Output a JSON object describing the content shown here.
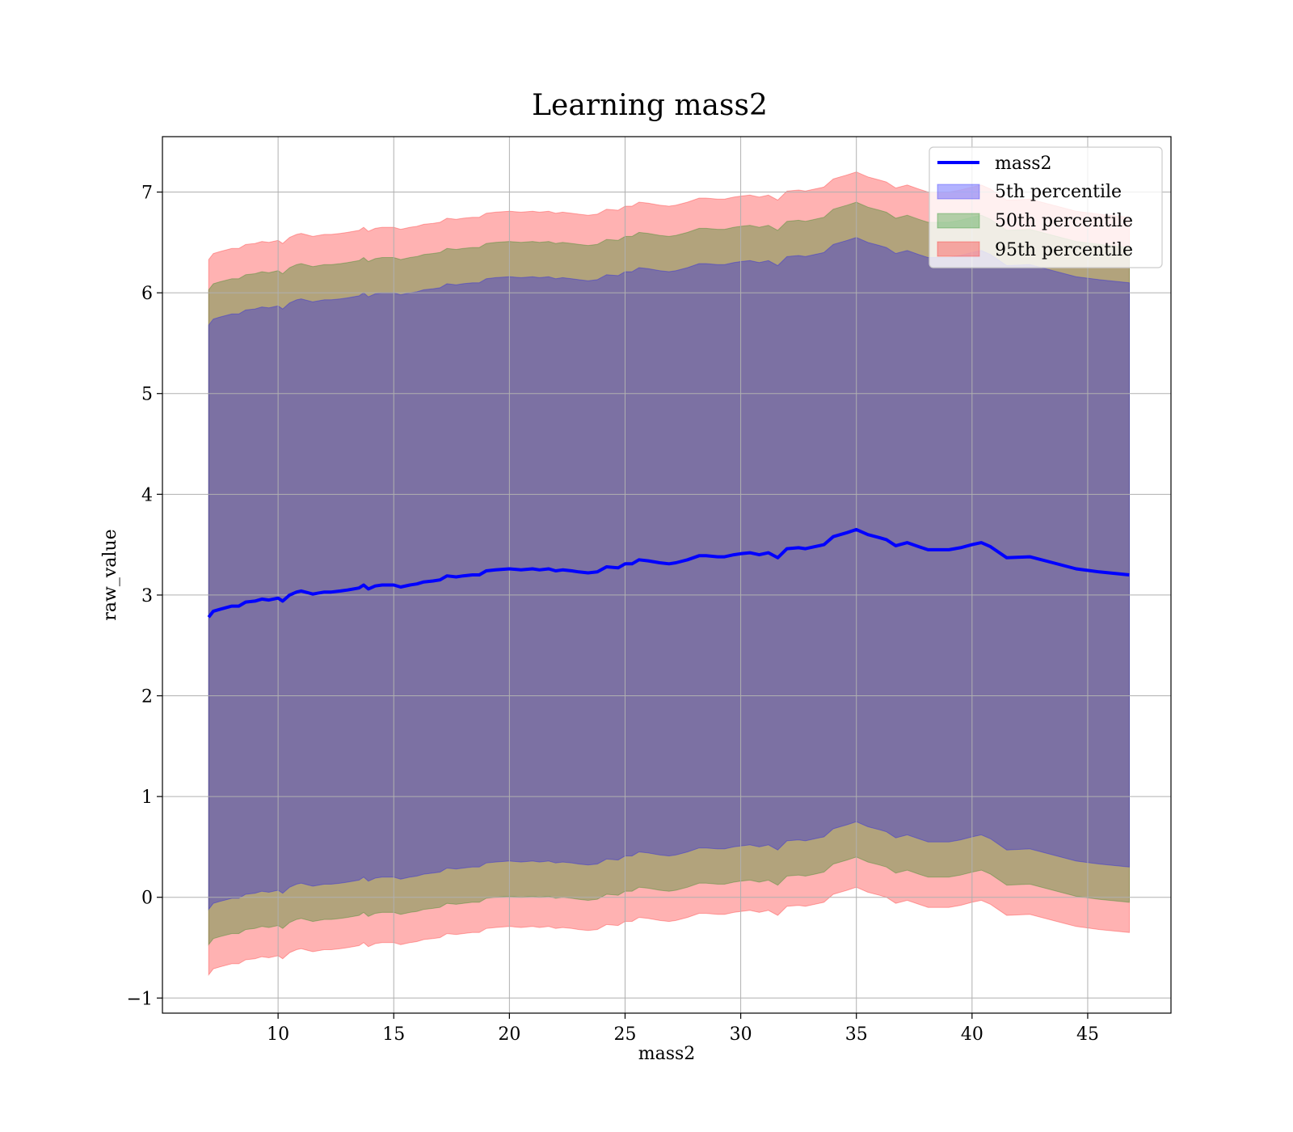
{
  "chart_data": {
    "type": "area",
    "title": "Learning mass2",
    "xlabel": "mass2",
    "ylabel": "raw_value",
    "xlim": [
      5,
      48.6
    ],
    "ylim": [
      -1.15,
      7.55
    ],
    "xticks": [
      10,
      15,
      20,
      25,
      30,
      35,
      40,
      45
    ],
    "yticks": [
      -1,
      0,
      1,
      2,
      3,
      4,
      5,
      6,
      7
    ],
    "ytick_labels": [
      "−1",
      "0",
      "1",
      "2",
      "3",
      "4",
      "5",
      "6",
      "7"
    ],
    "grid": true,
    "legend_position": "upper right",
    "x": [
      7.0,
      7.2,
      7.5,
      8.0,
      8.3,
      8.6,
      9.0,
      9.3,
      9.6,
      10.0,
      10.2,
      10.5,
      10.8,
      11.0,
      11.5,
      12.0,
      12.3,
      12.7,
      13.0,
      13.5,
      13.7,
      13.9,
      14.2,
      14.5,
      15.0,
      15.3,
      15.7,
      16.0,
      16.3,
      16.7,
      17.0,
      17.3,
      17.7,
      18.0,
      18.4,
      18.7,
      19.0,
      19.4,
      20.0,
      20.5,
      21.0,
      21.3,
      21.7,
      22.0,
      22.3,
      22.7,
      23.0,
      23.4,
      23.8,
      24.2,
      24.7,
      25.0,
      25.3,
      25.6,
      26.0,
      26.5,
      26.9,
      27.2,
      27.7,
      28.2,
      28.5,
      29.0,
      29.3,
      29.7,
      30.0,
      30.4,
      30.8,
      31.2,
      31.6,
      32.0,
      32.5,
      32.8,
      33.2,
      33.6,
      34.0,
      34.3,
      34.6,
      35.0,
      35.5,
      36.0,
      36.3,
      36.7,
      37.2,
      37.7,
      38.1,
      38.6,
      39.0,
      39.5,
      40.0,
      40.4,
      40.8,
      41.5,
      42.5,
      43.5,
      44.5,
      45.5,
      46.8
    ],
    "series": [
      {
        "name": "mass2",
        "values": [
          2.78,
          2.84,
          2.86,
          2.89,
          2.89,
          2.93,
          2.94,
          2.96,
          2.95,
          2.97,
          2.94,
          3.0,
          3.03,
          3.04,
          3.01,
          3.03,
          3.03,
          3.04,
          3.05,
          3.07,
          3.1,
          3.06,
          3.09,
          3.1,
          3.1,
          3.08,
          3.1,
          3.11,
          3.13,
          3.14,
          3.15,
          3.19,
          3.18,
          3.19,
          3.2,
          3.2,
          3.24,
          3.25,
          3.26,
          3.25,
          3.26,
          3.25,
          3.26,
          3.24,
          3.25,
          3.24,
          3.23,
          3.22,
          3.23,
          3.28,
          3.27,
          3.31,
          3.31,
          3.35,
          3.34,
          3.32,
          3.31,
          3.32,
          3.35,
          3.39,
          3.39,
          3.38,
          3.38,
          3.4,
          3.41,
          3.42,
          3.4,
          3.42,
          3.37,
          3.46,
          3.47,
          3.46,
          3.48,
          3.5,
          3.58,
          3.6,
          3.62,
          3.65,
          3.6,
          3.57,
          3.55,
          3.49,
          3.52,
          3.48,
          3.45,
          3.45,
          3.45,
          3.47,
          3.5,
          3.52,
          3.48,
          3.37,
          3.38,
          3.32,
          3.26,
          3.23,
          3.2
        ]
      },
      {
        "name": "5th percentile",
        "lower_offset": -2.9,
        "upper_offset": 2.9
      },
      {
        "name": "50th percentile",
        "lower_offset": -3.25,
        "upper_offset": 3.25
      },
      {
        "name": "95th percentile",
        "lower_offset": -3.55,
        "upper_offset": 3.55
      }
    ]
  },
  "colors": {
    "line": "#0000ff",
    "band_5th": "#0000ff",
    "band_50th": "#008000",
    "band_95th": "#ff0000",
    "grid": "#b0b0b0"
  }
}
